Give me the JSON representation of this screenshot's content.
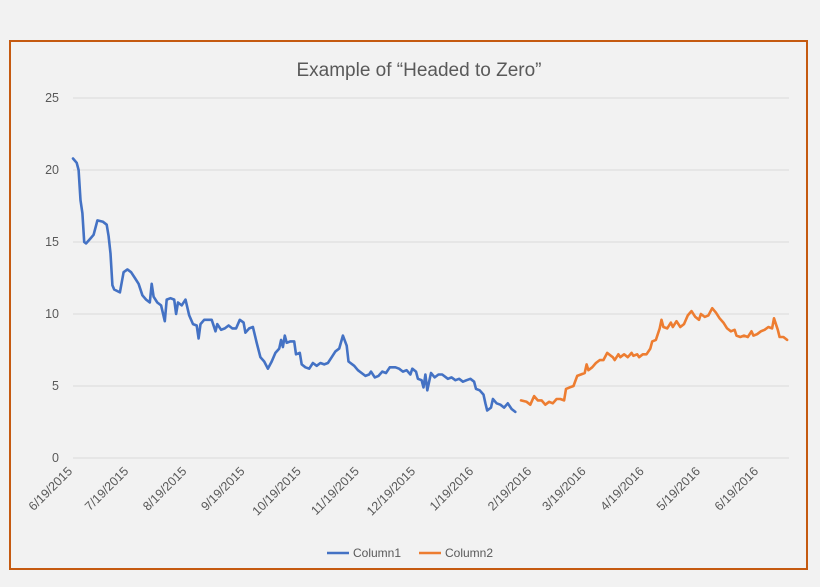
{
  "chart_data": {
    "type": "line",
    "title": "Example of “Headed to Zero”",
    "xlabel": "",
    "ylabel": "",
    "ylim": [
      0,
      25
    ],
    "yticks": [
      "0",
      "5",
      "10",
      "15",
      "20",
      "25"
    ],
    "xlim": [
      "2015-06-19",
      "2016-07-05"
    ],
    "xticks": [
      "6/19/2015",
      "7/19/2015",
      "8/19/2015",
      "9/19/2015",
      "10/19/2015",
      "11/19/2015",
      "12/19/2015",
      "1/19/2016",
      "2/19/2016",
      "3/19/2016",
      "4/19/2016",
      "5/19/2016",
      "6/19/2016"
    ],
    "xtick_dates": [
      "2015-06-19",
      "2015-07-19",
      "2015-08-19",
      "2015-09-19",
      "2015-10-19",
      "2015-11-19",
      "2015-12-19",
      "2016-01-19",
      "2016-02-19",
      "2016-03-19",
      "2016-04-19",
      "2016-05-19",
      "2016-06-19"
    ],
    "grid": true,
    "legend_position": "bottom",
    "series": [
      {
        "name": "Column1",
        "color": "#4472c4",
        "points": [
          [
            "2015-06-19",
            20.8
          ],
          [
            "2015-06-21",
            20.5
          ],
          [
            "2015-06-22",
            20.0
          ],
          [
            "2015-06-23",
            17.9
          ],
          [
            "2015-06-24",
            17.0
          ],
          [
            "2015-06-25",
            15.0
          ],
          [
            "2015-06-26",
            14.9
          ],
          [
            "2015-06-28",
            15.2
          ],
          [
            "2015-06-30",
            15.5
          ],
          [
            "2015-07-02",
            16.5
          ],
          [
            "2015-07-05",
            16.4
          ],
          [
            "2015-07-07",
            16.2
          ],
          [
            "2015-07-08",
            15.4
          ],
          [
            "2015-07-09",
            14.2
          ],
          [
            "2015-07-10",
            12.0
          ],
          [
            "2015-07-11",
            11.7
          ],
          [
            "2015-07-14",
            11.5
          ],
          [
            "2015-07-16",
            12.9
          ],
          [
            "2015-07-18",
            13.1
          ],
          [
            "2015-07-20",
            12.9
          ],
          [
            "2015-07-22",
            12.5
          ],
          [
            "2015-07-24",
            12.1
          ],
          [
            "2015-07-26",
            11.3
          ],
          [
            "2015-07-28",
            11.0
          ],
          [
            "2015-07-30",
            10.8
          ],
          [
            "2015-07-31",
            12.1
          ],
          [
            "2015-08-01",
            11.2
          ],
          [
            "2015-08-03",
            10.8
          ],
          [
            "2015-08-05",
            10.6
          ],
          [
            "2015-08-07",
            9.5
          ],
          [
            "2015-08-08",
            11.0
          ],
          [
            "2015-08-10",
            11.1
          ],
          [
            "2015-08-12",
            11.0
          ],
          [
            "2015-08-13",
            10.0
          ],
          [
            "2015-08-14",
            10.8
          ],
          [
            "2015-08-16",
            10.6
          ],
          [
            "2015-08-18",
            11.0
          ],
          [
            "2015-08-20",
            9.9
          ],
          [
            "2015-08-22",
            9.3
          ],
          [
            "2015-08-24",
            9.2
          ],
          [
            "2015-08-25",
            8.3
          ],
          [
            "2015-08-26",
            9.3
          ],
          [
            "2015-08-28",
            9.6
          ],
          [
            "2015-08-30",
            9.6
          ],
          [
            "2015-09-01",
            9.6
          ],
          [
            "2015-09-03",
            8.8
          ],
          [
            "2015-09-04",
            9.3
          ],
          [
            "2015-09-06",
            8.9
          ],
          [
            "2015-09-08",
            9.0
          ],
          [
            "2015-09-10",
            9.2
          ],
          [
            "2015-09-12",
            9.0
          ],
          [
            "2015-09-14",
            9.0
          ],
          [
            "2015-09-16",
            9.6
          ],
          [
            "2015-09-18",
            9.4
          ],
          [
            "2015-09-19",
            8.7
          ],
          [
            "2015-09-21",
            9.0
          ],
          [
            "2015-09-23",
            9.1
          ],
          [
            "2015-09-25",
            8.0
          ],
          [
            "2015-09-27",
            7.0
          ],
          [
            "2015-09-29",
            6.7
          ],
          [
            "2015-10-01",
            6.2
          ],
          [
            "2015-10-03",
            6.7
          ],
          [
            "2015-10-05",
            7.3
          ],
          [
            "2015-10-07",
            7.6
          ],
          [
            "2015-10-08",
            8.2
          ],
          [
            "2015-10-09",
            7.7
          ],
          [
            "2015-10-10",
            8.5
          ],
          [
            "2015-10-11",
            8.0
          ],
          [
            "2015-10-13",
            8.1
          ],
          [
            "2015-10-15",
            8.1
          ],
          [
            "2015-10-16",
            7.2
          ],
          [
            "2015-10-18",
            7.3
          ],
          [
            "2015-10-19",
            6.5
          ],
          [
            "2015-10-21",
            6.3
          ],
          [
            "2015-10-23",
            6.2
          ],
          [
            "2015-10-25",
            6.6
          ],
          [
            "2015-10-27",
            6.4
          ],
          [
            "2015-10-29",
            6.6
          ],
          [
            "2015-10-31",
            6.5
          ],
          [
            "2015-11-02",
            6.6
          ],
          [
            "2015-11-04",
            7.0
          ],
          [
            "2015-11-06",
            7.4
          ],
          [
            "2015-11-08",
            7.6
          ],
          [
            "2015-11-10",
            8.5
          ],
          [
            "2015-11-12",
            7.8
          ],
          [
            "2015-11-13",
            6.7
          ],
          [
            "2015-11-16",
            6.4
          ],
          [
            "2015-11-18",
            6.1
          ],
          [
            "2015-11-20",
            5.9
          ],
          [
            "2015-11-22",
            5.7
          ],
          [
            "2015-11-24",
            5.8
          ],
          [
            "2015-11-25",
            6.0
          ],
          [
            "2015-11-27",
            5.6
          ],
          [
            "2015-11-29",
            5.7
          ],
          [
            "2015-12-01",
            6.0
          ],
          [
            "2015-12-03",
            5.9
          ],
          [
            "2015-12-05",
            6.3
          ],
          [
            "2015-12-08",
            6.3
          ],
          [
            "2015-12-10",
            6.2
          ],
          [
            "2015-12-12",
            6.0
          ],
          [
            "2015-12-14",
            6.1
          ],
          [
            "2015-12-16",
            5.8
          ],
          [
            "2015-12-17",
            6.2
          ],
          [
            "2015-12-19",
            6.0
          ],
          [
            "2015-12-20",
            5.5
          ],
          [
            "2015-12-22",
            5.4
          ],
          [
            "2015-12-23",
            4.9
          ],
          [
            "2015-12-24",
            5.8
          ],
          [
            "2015-12-25",
            4.7
          ],
          [
            "2015-12-27",
            5.9
          ],
          [
            "2015-12-29",
            5.6
          ],
          [
            "2015-12-31",
            5.8
          ],
          [
            "2016-01-02",
            5.8
          ],
          [
            "2016-01-05",
            5.5
          ],
          [
            "2016-01-07",
            5.6
          ],
          [
            "2016-01-09",
            5.4
          ],
          [
            "2016-01-11",
            5.5
          ],
          [
            "2016-01-13",
            5.3
          ],
          [
            "2016-01-15",
            5.4
          ],
          [
            "2016-01-17",
            5.5
          ],
          [
            "2016-01-19",
            5.3
          ],
          [
            "2016-01-20",
            4.8
          ],
          [
            "2016-01-22",
            4.7
          ],
          [
            "2016-01-24",
            4.4
          ],
          [
            "2016-01-25",
            3.8
          ],
          [
            "2016-01-26",
            3.3
          ],
          [
            "2016-01-28",
            3.5
          ],
          [
            "2016-01-29",
            4.1
          ],
          [
            "2016-01-31",
            3.8
          ],
          [
            "2016-02-02",
            3.7
          ],
          [
            "2016-02-04",
            3.5
          ],
          [
            "2016-02-06",
            3.8
          ],
          [
            "2016-02-08",
            3.4
          ],
          [
            "2016-02-10",
            3.2
          ]
        ]
      },
      {
        "name": "Column2",
        "color": "#ed7d31",
        "points": [
          [
            "2016-02-13",
            4.0
          ],
          [
            "2016-02-16",
            3.9
          ],
          [
            "2016-02-18",
            3.7
          ],
          [
            "2016-02-20",
            4.3
          ],
          [
            "2016-02-22",
            4.0
          ],
          [
            "2016-02-24",
            4.0
          ],
          [
            "2016-02-26",
            3.7
          ],
          [
            "2016-02-28",
            3.9
          ],
          [
            "2016-03-01",
            3.8
          ],
          [
            "2016-03-03",
            4.1
          ],
          [
            "2016-03-05",
            4.1
          ],
          [
            "2016-03-07",
            4.0
          ],
          [
            "2016-03-08",
            4.8
          ],
          [
            "2016-03-10",
            4.9
          ],
          [
            "2016-03-12",
            5.0
          ],
          [
            "2016-03-14",
            5.7
          ],
          [
            "2016-03-16",
            5.8
          ],
          [
            "2016-03-18",
            5.9
          ],
          [
            "2016-03-19",
            6.5
          ],
          [
            "2016-03-20",
            6.1
          ],
          [
            "2016-03-22",
            6.3
          ],
          [
            "2016-03-24",
            6.6
          ],
          [
            "2016-03-26",
            6.8
          ],
          [
            "2016-03-28",
            6.8
          ],
          [
            "2016-03-30",
            7.3
          ],
          [
            "2016-04-01",
            7.1
          ],
          [
            "2016-04-02",
            7.0
          ],
          [
            "2016-04-03",
            6.8
          ],
          [
            "2016-04-05",
            7.2
          ],
          [
            "2016-04-06",
            7.0
          ],
          [
            "2016-04-08",
            7.2
          ],
          [
            "2016-04-10",
            7.0
          ],
          [
            "2016-04-12",
            7.3
          ],
          [
            "2016-04-13",
            7.1
          ],
          [
            "2016-04-15",
            7.2
          ],
          [
            "2016-04-16",
            7.0
          ],
          [
            "2016-04-18",
            7.2
          ],
          [
            "2016-04-20",
            7.2
          ],
          [
            "2016-04-22",
            7.6
          ],
          [
            "2016-04-23",
            8.1
          ],
          [
            "2016-04-25",
            8.2
          ],
          [
            "2016-04-27",
            9.0
          ],
          [
            "2016-04-28",
            9.6
          ],
          [
            "2016-04-29",
            9.1
          ],
          [
            "2016-05-01",
            9.0
          ],
          [
            "2016-05-03",
            9.4
          ],
          [
            "2016-05-04",
            9.1
          ],
          [
            "2016-05-06",
            9.5
          ],
          [
            "2016-05-08",
            9.1
          ],
          [
            "2016-05-10",
            9.3
          ],
          [
            "2016-05-12",
            9.9
          ],
          [
            "2016-05-14",
            10.2
          ],
          [
            "2016-05-16",
            9.8
          ],
          [
            "2016-05-18",
            9.6
          ],
          [
            "2016-05-19",
            10.0
          ],
          [
            "2016-05-21",
            9.8
          ],
          [
            "2016-05-23",
            9.9
          ],
          [
            "2016-05-25",
            10.4
          ],
          [
            "2016-05-27",
            10.1
          ],
          [
            "2016-05-29",
            9.7
          ],
          [
            "2016-05-31",
            9.4
          ],
          [
            "2016-06-02",
            9.0
          ],
          [
            "2016-06-04",
            8.8
          ],
          [
            "2016-06-06",
            8.9
          ],
          [
            "2016-06-07",
            8.5
          ],
          [
            "2016-06-09",
            8.4
          ],
          [
            "2016-06-11",
            8.5
          ],
          [
            "2016-06-13",
            8.4
          ],
          [
            "2016-06-15",
            8.8
          ],
          [
            "2016-06-16",
            8.5
          ],
          [
            "2016-06-18",
            8.6
          ],
          [
            "2016-06-20",
            8.8
          ],
          [
            "2016-06-22",
            8.9
          ],
          [
            "2016-06-24",
            9.1
          ],
          [
            "2016-06-26",
            9.0
          ],
          [
            "2016-06-27",
            9.7
          ],
          [
            "2016-06-29",
            8.9
          ],
          [
            "2016-06-30",
            8.4
          ],
          [
            "2016-07-02",
            8.4
          ],
          [
            "2016-07-04",
            8.2
          ]
        ]
      }
    ]
  }
}
